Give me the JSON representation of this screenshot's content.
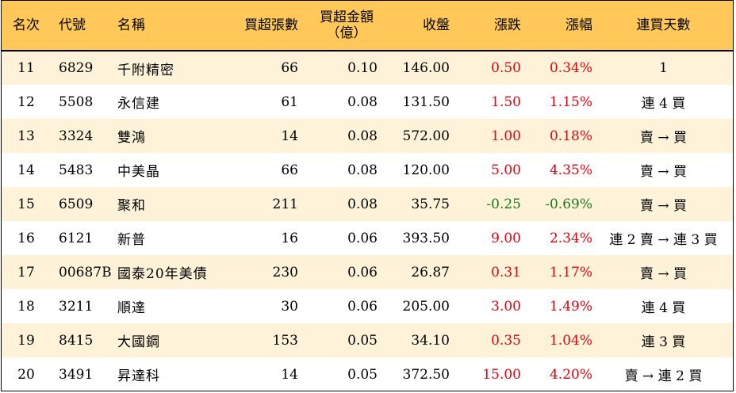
{
  "colors": {
    "header_bg": "#ffc858",
    "stripe_bg": "#fef3d8",
    "up": "#e8000b",
    "down": "#1a7a1a"
  },
  "header": {
    "rank": "名次",
    "code": "代號",
    "name": "名稱",
    "lots": "買超張數",
    "amount_line1": "買超金額",
    "amount_line2": "（億）",
    "close": "收盤",
    "change": "漲跌",
    "pct": "漲幅",
    "streak": "連買天數"
  },
  "rows": [
    {
      "rank": "11",
      "code": "6829",
      "name": "千附精密",
      "lots": "66",
      "amount": "0.10",
      "close": "146.00",
      "change": "0.50",
      "pct": "0.34%",
      "dir": "up",
      "streak": "1"
    },
    {
      "rank": "12",
      "code": "5508",
      "name": "永信建",
      "lots": "61",
      "amount": "0.08",
      "close": "131.50",
      "change": "1.50",
      "pct": "1.15%",
      "dir": "up",
      "streak": "連 4 買"
    },
    {
      "rank": "13",
      "code": "3324",
      "name": "雙鴻",
      "lots": "14",
      "amount": "0.08",
      "close": "572.00",
      "change": "1.00",
      "pct": "0.18%",
      "dir": "up",
      "streak": "賣 → 買"
    },
    {
      "rank": "14",
      "code": "5483",
      "name": "中美晶",
      "lots": "66",
      "amount": "0.08",
      "close": "120.00",
      "change": "5.00",
      "pct": "4.35%",
      "dir": "up",
      "streak": "賣 → 買"
    },
    {
      "rank": "15",
      "code": "6509",
      "name": "聚和",
      "lots": "211",
      "amount": "0.08",
      "close": "35.75",
      "change": "-0.25",
      "pct": "-0.69%",
      "dir": "down",
      "streak": "賣 → 買"
    },
    {
      "rank": "16",
      "code": "6121",
      "name": "新普",
      "lots": "16",
      "amount": "0.06",
      "close": "393.50",
      "change": "9.00",
      "pct": "2.34%",
      "dir": "up",
      "streak": "連 2 賣 → 連 3 買"
    },
    {
      "rank": "17",
      "code": "00687B",
      "name": "國泰20年美債",
      "lots": "230",
      "amount": "0.06",
      "close": "26.87",
      "change": "0.31",
      "pct": "1.17%",
      "dir": "up",
      "streak": "賣 → 買"
    },
    {
      "rank": "18",
      "code": "3211",
      "name": "順達",
      "lots": "30",
      "amount": "0.06",
      "close": "205.00",
      "change": "3.00",
      "pct": "1.49%",
      "dir": "up",
      "streak": "連 4 買"
    },
    {
      "rank": "19",
      "code": "8415",
      "name": "大國鋼",
      "lots": "153",
      "amount": "0.05",
      "close": "34.10",
      "change": "0.35",
      "pct": "1.04%",
      "dir": "up",
      "streak": "連 3 買"
    },
    {
      "rank": "20",
      "code": "3491",
      "name": "昇達科",
      "lots": "14",
      "amount": "0.05",
      "close": "372.50",
      "change": "15.00",
      "pct": "4.20%",
      "dir": "up",
      "streak": "賣 → 連 2 買"
    }
  ]
}
